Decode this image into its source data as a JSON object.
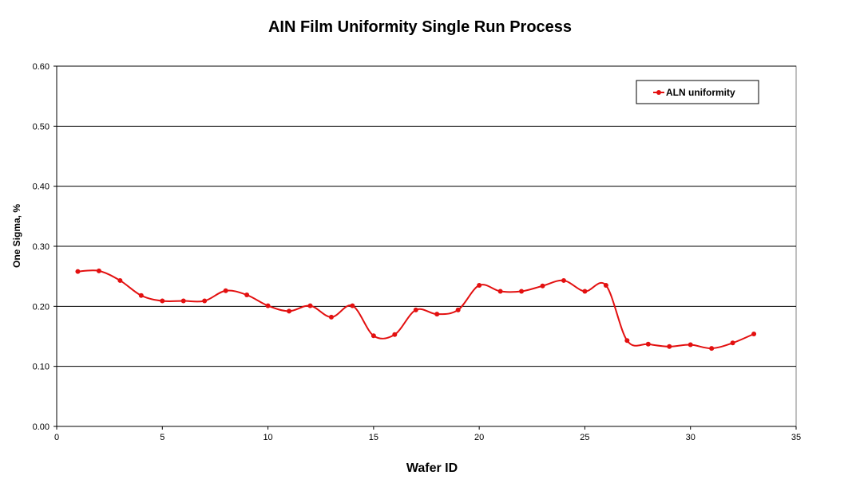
{
  "chart_data": {
    "type": "line",
    "title": "AIN Film Uniformity Single Run Process",
    "xlabel": "Wafer ID",
    "ylabel": "One Sigma, %",
    "xlim": [
      0,
      35
    ],
    "ylim": [
      0,
      0.6
    ],
    "x_ticks": [
      "0",
      "5",
      "10",
      "15",
      "20",
      "25",
      "30",
      "35"
    ],
    "y_ticks": [
      "0.00",
      "0.10",
      "0.20",
      "0.30",
      "0.40",
      "0.50",
      "0.60"
    ],
    "grid": "horizontal major lines",
    "legend_position": "top-right",
    "series": [
      {
        "name": "ALN uniformity",
        "color": "#e31010",
        "smooth": true,
        "x": [
          1,
          2,
          3,
          4,
          5,
          6,
          7,
          8,
          9,
          10,
          11,
          12,
          13,
          14,
          15,
          16,
          17,
          18,
          19,
          20,
          21,
          22,
          23,
          24,
          25,
          26,
          27,
          28,
          29,
          30,
          31,
          32,
          33
        ],
        "values": [
          0.258,
          0.259,
          0.243,
          0.218,
          0.209,
          0.209,
          0.209,
          0.226,
          0.219,
          0.201,
          0.192,
          0.201,
          0.182,
          0.201,
          0.151,
          0.153,
          0.194,
          0.187,
          0.194,
          0.235,
          0.225,
          0.225,
          0.234,
          0.243,
          0.225,
          0.235,
          0.143,
          0.137,
          0.133,
          0.136,
          0.13,
          0.139,
          0.154
        ]
      }
    ]
  }
}
